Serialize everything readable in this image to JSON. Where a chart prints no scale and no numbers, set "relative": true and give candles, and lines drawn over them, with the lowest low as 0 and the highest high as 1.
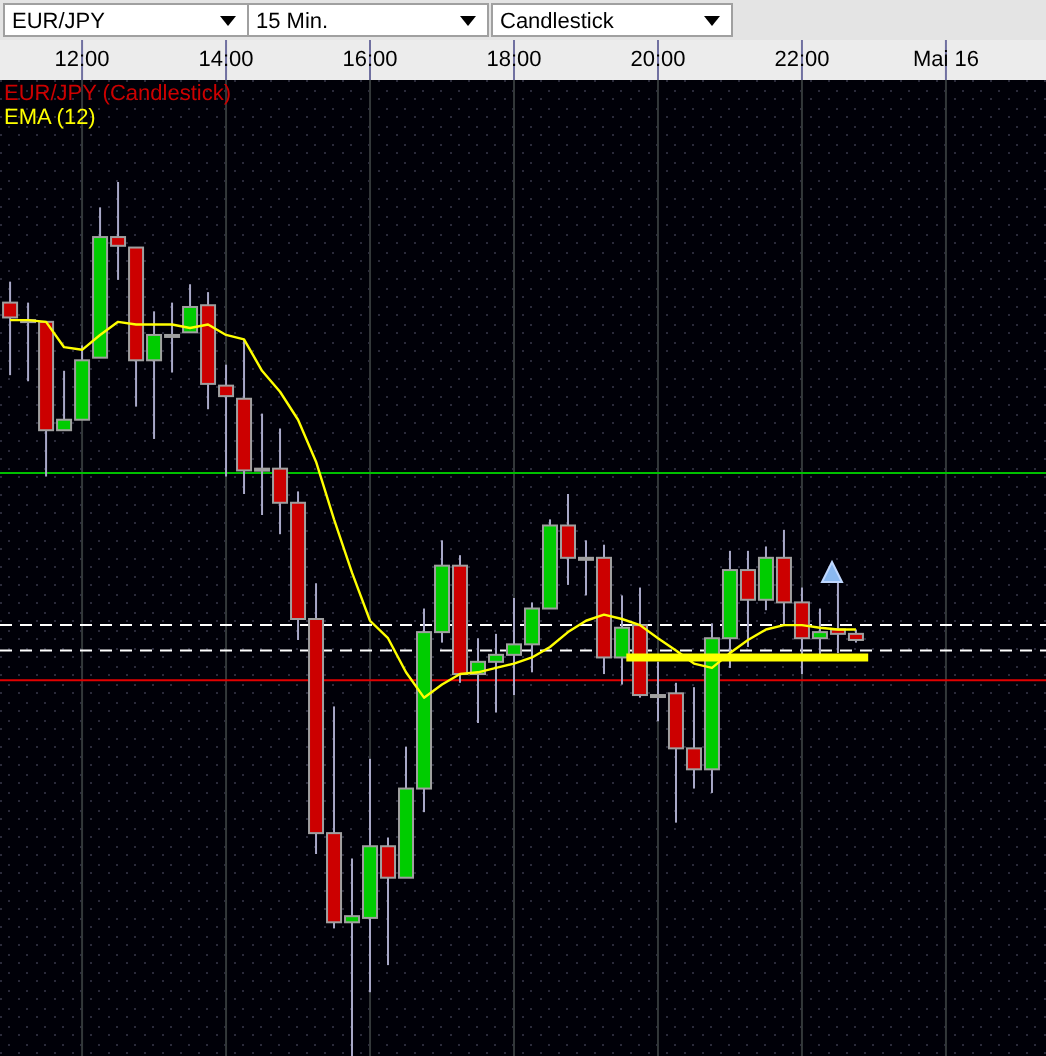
{
  "chart_data": {
    "type": "candlestick",
    "relative": true,
    "annotations": [
      "EUR/JPY",
      "15 Min.",
      "Candlestick"
    ],
    "x": [
      11,
      11.25,
      11.5,
      11.75,
      12,
      12.25,
      12.5,
      12.75,
      13,
      13.25,
      13.5,
      13.75,
      14,
      14.25,
      14.5,
      14.75,
      15,
      15.25,
      15.5,
      15.75,
      16,
      16.25,
      16.5,
      16.75,
      17,
      17.25,
      17.5,
      17.75,
      18,
      18.25,
      18.5,
      18.75,
      19,
      19.25,
      19.5,
      19.75,
      20,
      20.25,
      20.5,
      20.75,
      21,
      21.25,
      21.5,
      21.75,
      22,
      22.25,
      22.5,
      22.75
    ],
    "xlim": [
      10.86,
      25.39
    ],
    "xticks": [
      {
        "value": 12,
        "label": "12:00"
      },
      {
        "value": 14,
        "label": "14:00"
      },
      {
        "value": 16,
        "label": "16:00"
      },
      {
        "value": 18,
        "label": "18:00"
      },
      {
        "value": 20,
        "label": "20:00"
      },
      {
        "value": 22,
        "label": "22:00"
      },
      {
        "value": 24,
        "label": "Mai 16"
      }
    ],
    "grid": "x",
    "legend": "top left",
    "series": [
      {
        "name": "EUR/JPY (Candlestick)",
        "type": "candlestick",
        "color": "#cc0000",
        "ohlc": [
          [
            0.862,
            0.886,
            0.779,
            0.845
          ],
          [
            0.842,
            0.862,
            0.772,
            0.842
          ],
          [
            0.84,
            0.84,
            0.663,
            0.716
          ],
          [
            0.716,
            0.784,
            0.716,
            0.728
          ],
          [
            0.728,
            0.813,
            0.728,
            0.796
          ],
          [
            0.799,
            0.971,
            0.799,
            0.937
          ],
          [
            0.937,
            1.0,
            0.888,
            0.927
          ],
          [
            0.925,
            0.925,
            0.743,
            0.796
          ],
          [
            0.796,
            0.852,
            0.706,
            0.825
          ],
          [
            0.825,
            0.862,
            0.782,
            0.825
          ],
          [
            0.828,
            0.883,
            0.828,
            0.857
          ],
          [
            0.859,
            0.874,
            0.74,
            0.769
          ],
          [
            0.767,
            0.791,
            0.663,
            0.755
          ],
          [
            0.752,
            0.82,
            0.643,
            0.67
          ],
          [
            0.67,
            0.735,
            0.619,
            0.672
          ],
          [
            0.672,
            0.718,
            0.597,
            0.633
          ],
          [
            0.633,
            0.646,
            0.476,
            0.5
          ],
          [
            0.5,
            0.541,
            0.231,
            0.255
          ],
          [
            0.255,
            0.4,
            0.146,
            0.153
          ],
          [
            0.153,
            0.226,
            0,
            0.16
          ],
          [
            0.158,
            0.34,
            0.073,
            0.24
          ],
          [
            0.24,
            0.25,
            0.104,
            0.204
          ],
          [
            0.204,
            0.354,
            0.204,
            0.306
          ],
          [
            0.306,
            0.512,
            0.279,
            0.485
          ],
          [
            0.485,
            0.59,
            0.473,
            0.561
          ],
          [
            0.561,
            0.573,
            0.427,
            0.437
          ],
          [
            0.437,
            0.478,
            0.381,
            0.451
          ],
          [
            0.451,
            0.483,
            0.393,
            0.459
          ],
          [
            0.459,
            0.524,
            0.413,
            0.471
          ],
          [
            0.471,
            0.519,
            0.439,
            0.512
          ],
          [
            0.512,
            0.614,
            0.512,
            0.607
          ],
          [
            0.607,
            0.643,
            0.539,
            0.57
          ],
          [
            0.57,
            0.59,
            0.527,
            0.57
          ],
          [
            0.57,
            0.585,
            0.437,
            0.456
          ],
          [
            0.456,
            0.527,
            0.425,
            0.49
          ],
          [
            0.493,
            0.536,
            0.41,
            0.413
          ],
          [
            0.413,
            0.451,
            0.383,
            0.413
          ],
          [
            0.415,
            0.427,
            0.267,
            0.352
          ],
          [
            0.352,
            0.422,
            0.306,
            0.328
          ],
          [
            0.328,
            0.495,
            0.301,
            0.478
          ],
          [
            0.478,
            0.578,
            0.444,
            0.556
          ],
          [
            0.556,
            0.578,
            0.468,
            0.522
          ],
          [
            0.522,
            0.583,
            0.51,
            0.57
          ],
          [
            0.57,
            0.602,
            0.493,
            0.519
          ],
          [
            0.519,
            0.536,
            0.437,
            0.478
          ],
          [
            0.478,
            0.512,
            0.456,
            0.485
          ],
          [
            0.488,
            0.544,
            0.461,
            0.483
          ],
          [
            0.483,
            0.488,
            0.473,
            0.476
          ]
        ],
        "colors": [
          "#cc0000",
          "#c0c0c0",
          "#cc0000",
          "#00cc00",
          "#00cc00",
          "#00cc00",
          "#cc0000",
          "#cc0000",
          "#00cc00",
          "#c0c0c0",
          "#00cc00",
          "#cc0000",
          "#cc0000",
          "#cc0000",
          "#00cc00",
          "#cc0000",
          "#cc0000",
          "#cc0000",
          "#cc0000",
          "#00cc00",
          "#00cc00",
          "#cc0000",
          "#00cc00",
          "#00cc00",
          "#00cc00",
          "#cc0000",
          "#00cc00",
          "#00cc00",
          "#00cc00",
          "#00cc00",
          "#00cc00",
          "#cc0000",
          "#c0c0c0",
          "#cc0000",
          "#00cc00",
          "#cc0000",
          "#c0c0c0",
          "#cc0000",
          "#cc0000",
          "#00cc00",
          "#00cc00",
          "#cc0000",
          "#00cc00",
          "#cc0000",
          "#cc0000",
          "#00cc00",
          "#cc0000",
          "#cc0000"
        ]
      },
      {
        "name": "EMA (12)",
        "type": "line",
        "color": "#ffff00",
        "values": [
          0.842,
          0.842,
          0.84,
          0.811,
          0.808,
          0.825,
          0.84,
          0.837,
          0.837,
          0.837,
          0.833,
          0.837,
          0.825,
          0.82,
          0.784,
          0.76,
          0.728,
          0.68,
          0.614,
          0.553,
          0.498,
          0.478,
          0.439,
          0.41,
          0.425,
          0.437,
          0.439,
          0.444,
          0.449,
          0.456,
          0.468,
          0.485,
          0.498,
          0.505,
          0.5,
          0.493,
          0.478,
          0.464,
          0.449,
          0.444,
          0.461,
          0.476,
          0.488,
          0.493,
          0.493,
          0.49,
          0.488,
          0.488
        ]
      },
      {
        "type": "line",
        "color": "#ffff00",
        "x": [
          19.56,
          22.92
        ],
        "values": [
          0.456,
          0.456
        ]
      }
    ],
    "ref_lines": [
      {
        "axis": "y",
        "value": 0.667,
        "color": "#00c000",
        "line_style": "solid"
      },
      {
        "axis": "y",
        "value": 0.43,
        "color": "#e00000",
        "line_style": "solid"
      },
      {
        "axis": "y",
        "value": 0.493,
        "color": "#ffffff",
        "line_style": "dashed"
      },
      {
        "axis": "y",
        "value": 0.464,
        "color": "#ffffff",
        "line_style": "dashed"
      }
    ]
  }
}
